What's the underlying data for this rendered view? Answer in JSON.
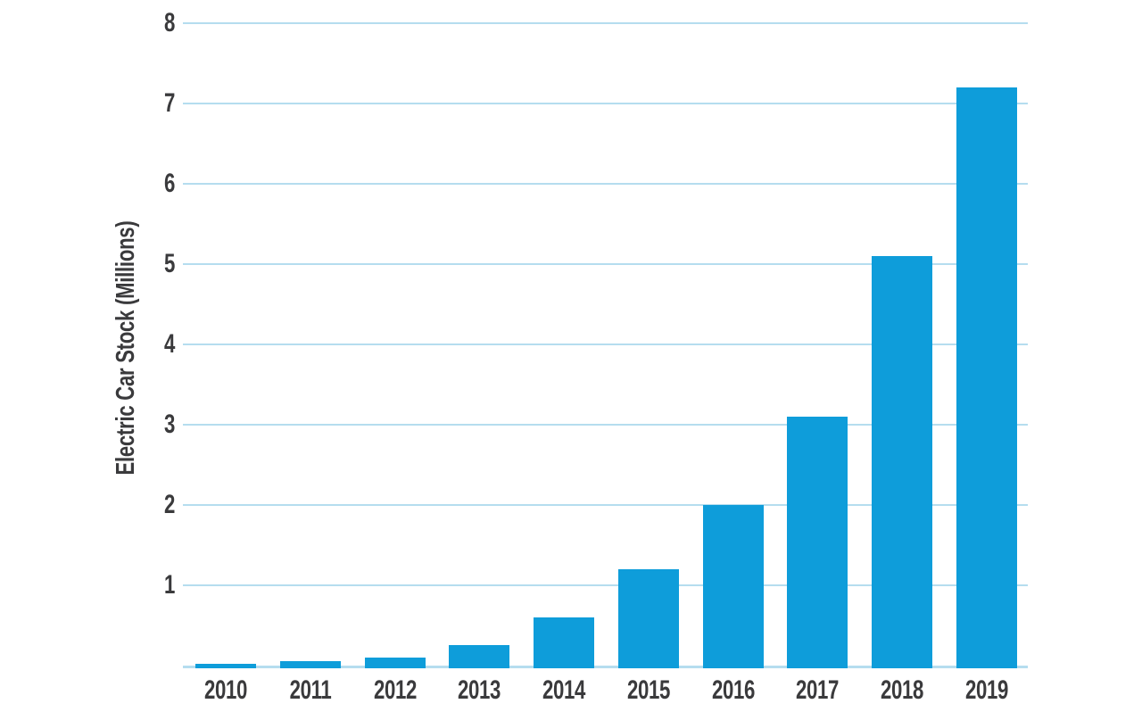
{
  "chart_data": {
    "type": "bar",
    "title": "",
    "xlabel": "",
    "ylabel": "Electric Car Stock (Millions)",
    "categories": [
      "2010",
      "2011",
      "2012",
      "2013",
      "2014",
      "2015",
      "2016",
      "2017",
      "2018",
      "2019"
    ],
    "values": [
      0.02,
      0.05,
      0.1,
      0.25,
      0.6,
      1.2,
      2.0,
      3.1,
      5.1,
      7.2
    ],
    "ylim": [
      0,
      8
    ],
    "yticks": [
      1,
      2,
      3,
      4,
      5,
      6,
      7,
      8
    ],
    "grid": true,
    "legend": "none",
    "colors": {
      "bar": "#0E9DDA",
      "gridline": "#B5DDEF",
      "axis_text": "#3A3A3C",
      "background": "#FFFFFF"
    }
  }
}
